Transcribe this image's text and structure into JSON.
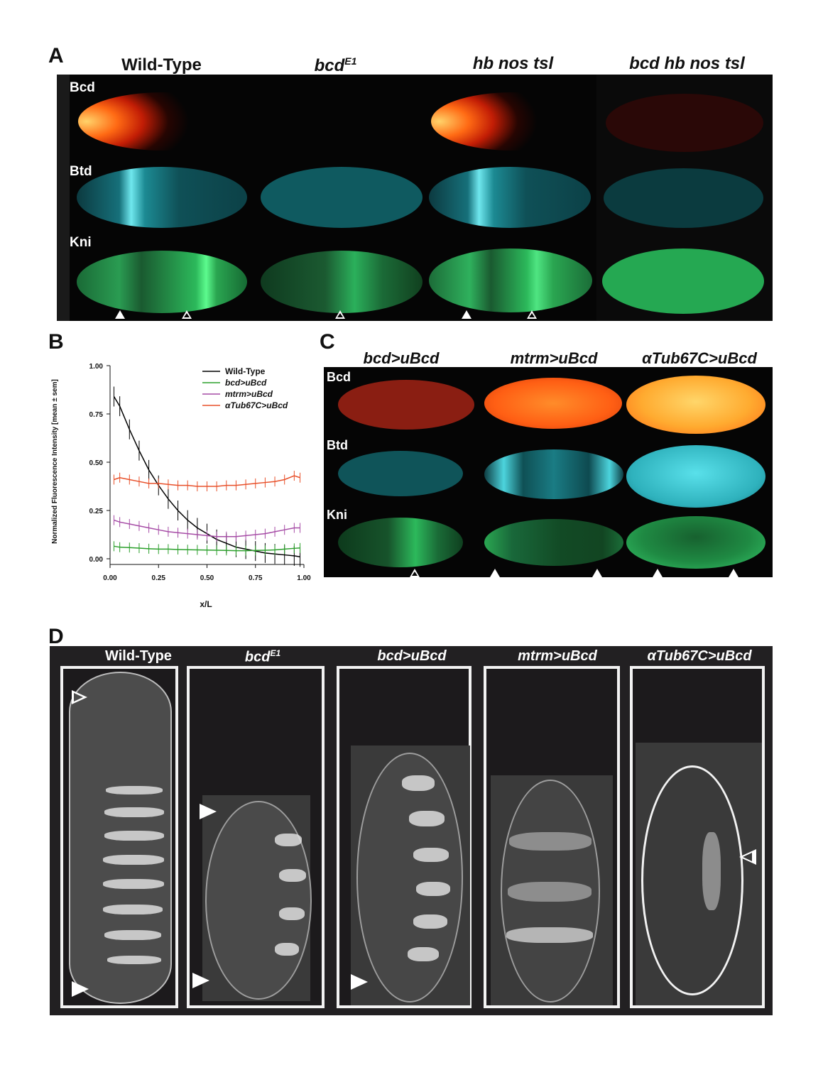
{
  "panels": {
    "a": {
      "letter": "A",
      "columns": [
        "Wild-Type",
        "bcd",
        "hb nos tsl",
        "bcd hb nos tsl"
      ],
      "column1_sup": "E1",
      "rows": [
        "Bcd",
        "Btd",
        "Kni"
      ]
    },
    "b": {
      "letter": "B"
    },
    "c": {
      "letter": "C",
      "columns": [
        "bcd>uBcd",
        "mtrm>uBcd",
        "αTub67C>uBcd"
      ],
      "rows": [
        "Bcd",
        "Btd",
        "Kni"
      ]
    },
    "d": {
      "letter": "D",
      "columns": [
        "Wild-Type",
        "bcd",
        "bcd>uBcd",
        "mtrm>uBcd",
        "αTub67C>uBcd"
      ],
      "column1_sup": "E1"
    }
  },
  "colors": {
    "bcd_stain": "#ff5a14",
    "btd_stain": "#3fc3cf",
    "kni_stain": "#2bd467",
    "wild_type": "#000000",
    "bcd_uBcd": "#2ca02c",
    "mtrm_uBcd": "#a64ca6",
    "aTub67C_uBcd": "#e8502a"
  },
  "chart_data": {
    "type": "line",
    "xlabel": "x/L",
    "ylabel": "Normalized Fluorescence Intensity [mean ± sem]",
    "xlim": [
      0,
      1
    ],
    "ylim": [
      0,
      1
    ],
    "xticks": [
      "0.00",
      "0.25",
      "0.50",
      "0.75",
      "1.00"
    ],
    "yticks": [
      "0.00",
      "0.25",
      "0.50",
      "0.75",
      "1.00"
    ],
    "legend_position": "top-right",
    "x": [
      0.02,
      0.05,
      0.1,
      0.15,
      0.2,
      0.25,
      0.3,
      0.35,
      0.4,
      0.45,
      0.5,
      0.55,
      0.6,
      0.65,
      0.7,
      0.75,
      0.8,
      0.85,
      0.9,
      0.95,
      0.98
    ],
    "series": [
      {
        "name": "Wild-Type",
        "color": "#000000",
        "values": [
          0.84,
          0.79,
          0.67,
          0.56,
          0.46,
          0.38,
          0.31,
          0.25,
          0.2,
          0.16,
          0.13,
          0.1,
          0.08,
          0.06,
          0.05,
          0.04,
          0.03,
          0.025,
          0.02,
          0.015,
          0.01
        ]
      },
      {
        "name": "bcd>uBcd",
        "color": "#2ca02c",
        "values": [
          0.065,
          0.06,
          0.058,
          0.055,
          0.052,
          0.05,
          0.05,
          0.048,
          0.047,
          0.046,
          0.045,
          0.044,
          0.043,
          0.042,
          0.042,
          0.043,
          0.044,
          0.046,
          0.05,
          0.054,
          0.056
        ]
      },
      {
        "name": "mtrm>uBcd",
        "color": "#a64ca6",
        "values": [
          0.2,
          0.19,
          0.18,
          0.17,
          0.16,
          0.15,
          0.14,
          0.135,
          0.13,
          0.125,
          0.12,
          0.115,
          0.115,
          0.115,
          0.12,
          0.125,
          0.13,
          0.14,
          0.15,
          0.16,
          0.16
        ]
      },
      {
        "name": "αTub67C>uBcd",
        "color": "#e8502a",
        "values": [
          0.41,
          0.42,
          0.41,
          0.4,
          0.39,
          0.39,
          0.385,
          0.38,
          0.38,
          0.375,
          0.375,
          0.375,
          0.38,
          0.38,
          0.385,
          0.39,
          0.395,
          0.4,
          0.41,
          0.43,
          0.42
        ]
      }
    ]
  }
}
